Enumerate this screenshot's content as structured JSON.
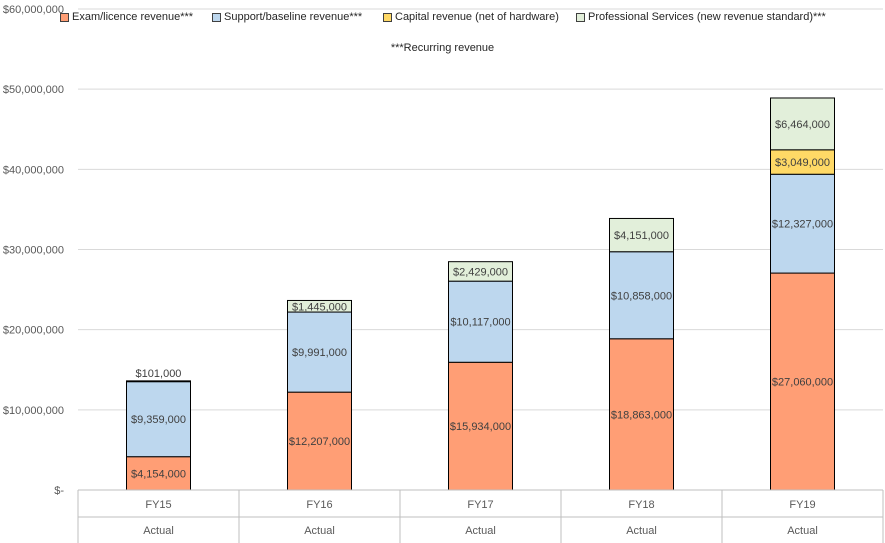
{
  "chart_data": {
    "type": "bar",
    "stacked": true,
    "categories": [
      "FY15",
      "FY16",
      "FY17",
      "FY18",
      "FY19"
    ],
    "category_sublabels": [
      "Actual",
      "Actual",
      "Actual",
      "Actual",
      "Actual"
    ],
    "series": [
      {
        "name": "Exam/licence revenue***",
        "color": "#FF9E75",
        "values": [
          4154000,
          12207000,
          15934000,
          18863000,
          27060000
        ],
        "labels": [
          "$4,154,000",
          "$12,207,000",
          "$15,934,000",
          "$18,863,000",
          "$27,060,000"
        ]
      },
      {
        "name": "Support/baseline revenue***",
        "color": "#BDD7EE",
        "values": [
          9359000,
          9991000,
          10117000,
          10858000,
          12327000
        ],
        "labels": [
          "$9,359,000",
          "$9,991,000",
          "$10,117,000",
          "$10,858,000",
          "$12,327,000"
        ]
      },
      {
        "name": "Capital revenue (net of hardware)",
        "color": "#FFD966",
        "values": [
          0,
          0,
          0,
          0,
          3049000
        ],
        "labels": [
          "",
          "",
          "",
          "",
          "$3,049,000"
        ]
      },
      {
        "name": "Professional Services (new revenue standard)***",
        "color": "#E2EFDA",
        "values": [
          101000,
          1445000,
          2429000,
          4151000,
          6464000
        ],
        "labels": [
          "$101,000",
          "$1,445,000",
          "$2,429,000",
          "$4,151,000",
          "$6,464,000"
        ]
      }
    ],
    "ylim": [
      0,
      60000000
    ],
    "yticks": [
      0,
      10000000,
      20000000,
      30000000,
      40000000,
      50000000,
      60000000
    ],
    "ytick_labels": [
      "$-",
      "$10,000,000",
      "$20,000,000",
      "$30,000,000",
      "$40,000,000",
      "$50,000,000",
      "$60,000,000"
    ],
    "note": "***Recurring revenue",
    "legend_position": "top",
    "grid": true
  }
}
